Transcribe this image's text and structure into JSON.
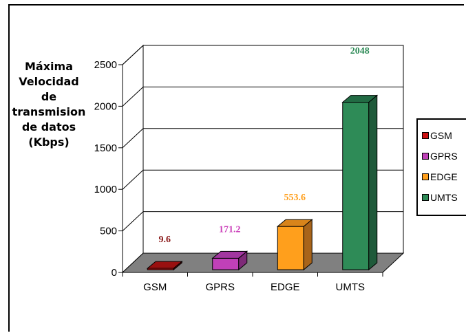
{
  "chart_data": {
    "type": "bar",
    "style": "3d",
    "categories": [
      "GSM",
      "GPRS",
      "EDGE",
      "UMTS"
    ],
    "series": [
      {
        "name": "GSM",
        "category": "GSM",
        "value": 9.6,
        "label": "9.6",
        "color": "#cc1111",
        "side": "#7a0a0a",
        "top": "#991010",
        "label_color": "#8b1a1a"
      },
      {
        "name": "GPRS",
        "category": "GPRS",
        "value": 171.2,
        "label": "171.2",
        "color": "#c040b8",
        "side": "#7e2a78",
        "top": "#a236a0",
        "label_color": "#cc44bb"
      },
      {
        "name": "EDGE",
        "category": "EDGE",
        "value": 553.6,
        "label": "553.6",
        "color": "#ff9f1c",
        "side": "#a8641a",
        "top": "#d9841a",
        "label_color": "#ff9f1c"
      },
      {
        "name": "UMTS",
        "category": "UMTS",
        "value": 2048,
        "label": "2048",
        "color": "#2e8b57",
        "side": "#1f5a3a",
        "top": "#226b44",
        "label_color": "#2e8b57"
      }
    ],
    "ylabel": "Máxima\nVelocidad\nde\ntransmision\nde datos\n(Kbps)",
    "xlabel": "",
    "title": "",
    "ylim": [
      0,
      2500
    ],
    "yticks": [
      "0",
      "500",
      "1000",
      "1500",
      "2000",
      "2500"
    ],
    "grid": true,
    "legend_position": "right"
  }
}
